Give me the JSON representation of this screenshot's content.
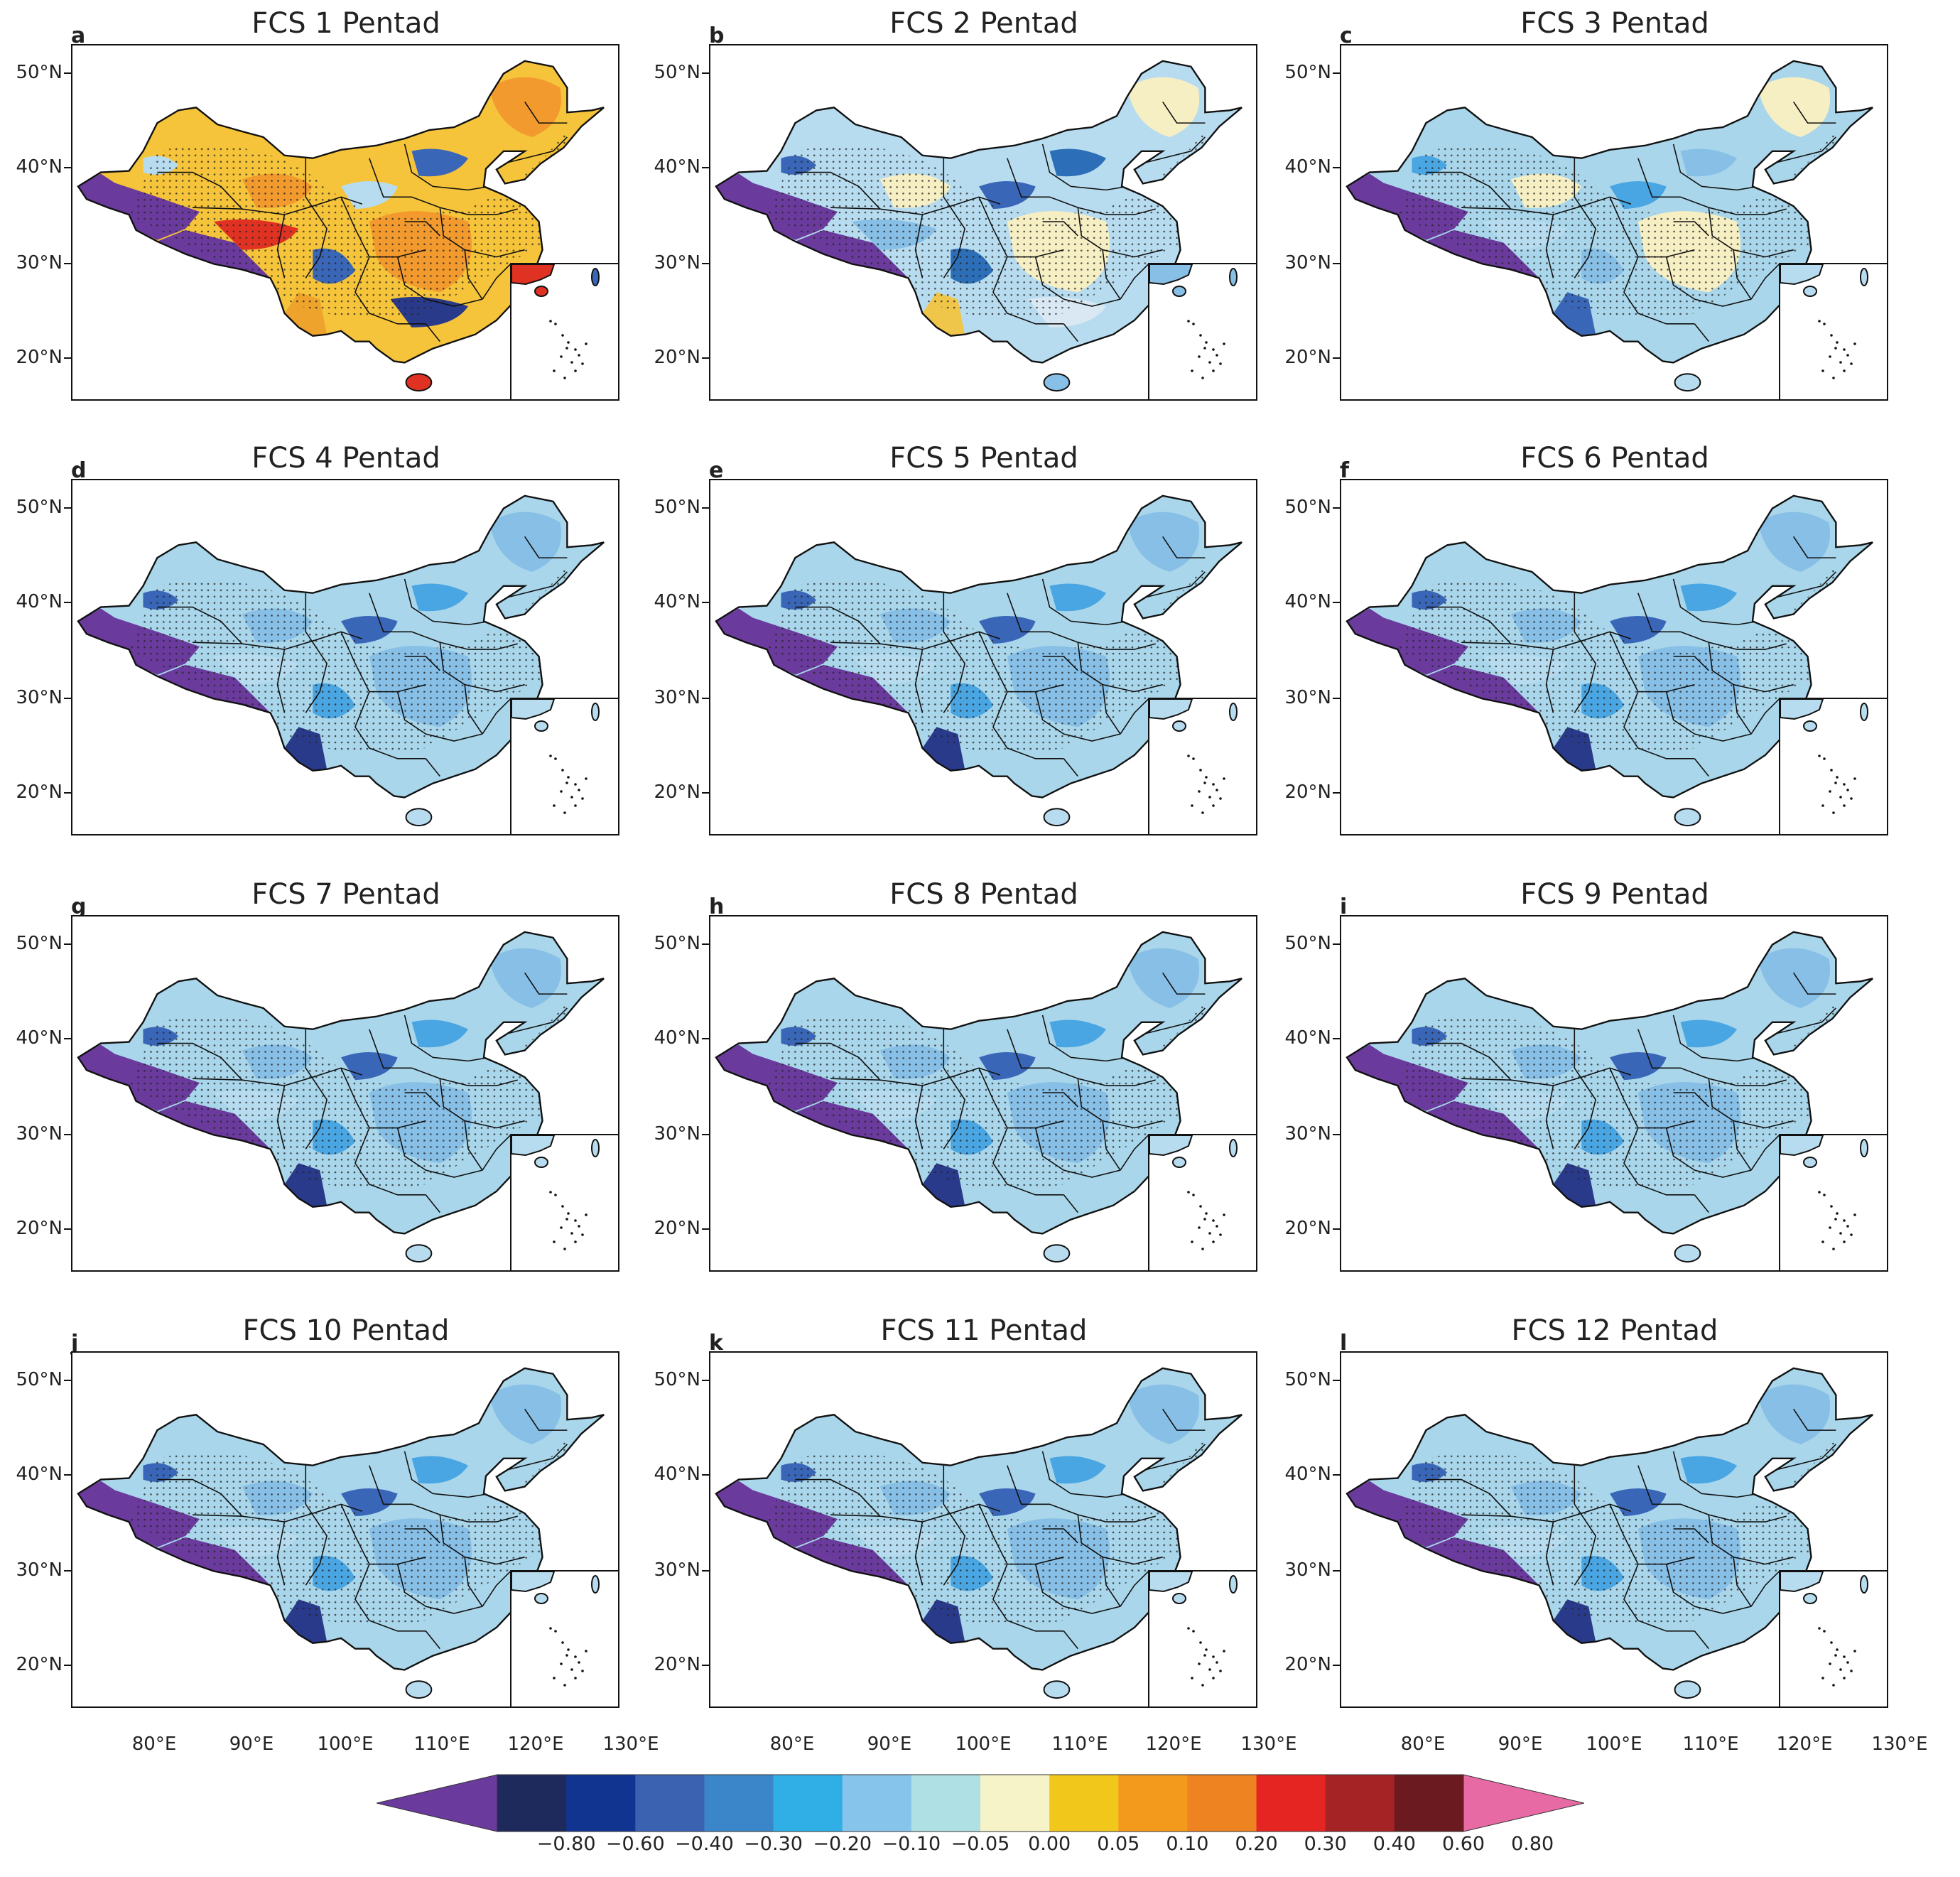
{
  "figure": {
    "panels": [
      {
        "letter": "a",
        "title": "FCS 1 Pentad",
        "palette": [
          "#6a3a9d",
          "#f6c43a",
          "#f39a2e",
          "#eea32c",
          "#b8dcef",
          "#3a66b8",
          "#e03222",
          "#2a3a8a"
        ]
      },
      {
        "letter": "b",
        "title": "FCS 2 Pentad",
        "palette": [
          "#6a3a9d",
          "#b8dcef",
          "#f7efc4",
          "#f0c64a",
          "#3a66b8",
          "#2c6fb8",
          "#87bfe6",
          "#d9e8f3"
        ]
      },
      {
        "letter": "c",
        "title": "FCS 3 Pentad",
        "palette": [
          "#6a3a9d",
          "#a9d6ea",
          "#f7efc4",
          "#3a66b8",
          "#4aa6e2",
          "#87bfe6",
          "#b8dcef",
          "#a9d6ea"
        ]
      },
      {
        "letter": "d",
        "title": "FCS 4 Pentad",
        "palette": [
          "#6a3a9d",
          "#a9d6ea",
          "#87bfe6",
          "#2a3a8a",
          "#3a66b8",
          "#4aa6e2",
          "#b8dcef",
          "#a9d6ea"
        ]
      },
      {
        "letter": "e",
        "title": "FCS 5 Pentad",
        "palette": [
          "#6a3a9d",
          "#a9d6ea",
          "#87bfe6",
          "#2a3a8a",
          "#3a66b8",
          "#4aa6e2",
          "#b8dcef",
          "#a9d6ea"
        ]
      },
      {
        "letter": "f",
        "title": "FCS 6 Pentad",
        "palette": [
          "#6a3a9d",
          "#a9d6ea",
          "#87bfe6",
          "#2a3a8a",
          "#3a66b8",
          "#4aa6e2",
          "#b8dcef",
          "#a9d6ea"
        ]
      },
      {
        "letter": "g",
        "title": "FCS 7 Pentad",
        "palette": [
          "#6a3a9d",
          "#a9d6ea",
          "#87bfe6",
          "#2a3a8a",
          "#3a66b8",
          "#4aa6e2",
          "#b8dcef",
          "#a9d6ea"
        ]
      },
      {
        "letter": "h",
        "title": "FCS 8 Pentad",
        "palette": [
          "#6a3a9d",
          "#a9d6ea",
          "#87bfe6",
          "#2a3a8a",
          "#3a66b8",
          "#4aa6e2",
          "#b8dcef",
          "#a9d6ea"
        ]
      },
      {
        "letter": "i",
        "title": "FCS 9 Pentad",
        "palette": [
          "#6a3a9d",
          "#a9d6ea",
          "#87bfe6",
          "#2a3a8a",
          "#3a66b8",
          "#4aa6e2",
          "#b8dcef",
          "#a9d6ea"
        ]
      },
      {
        "letter": "j",
        "title": "FCS 10 Pentad",
        "palette": [
          "#6a3a9d",
          "#a9d6ea",
          "#87bfe6",
          "#2a3a8a",
          "#3a66b8",
          "#4aa6e2",
          "#b8dcef",
          "#a9d6ea"
        ]
      },
      {
        "letter": "k",
        "title": "FCS 11 Pentad",
        "palette": [
          "#6a3a9d",
          "#a9d6ea",
          "#87bfe6",
          "#2a3a8a",
          "#3a66b8",
          "#4aa6e2",
          "#b8dcef",
          "#a9d6ea"
        ]
      },
      {
        "letter": "l",
        "title": "FCS 12 Pentad",
        "palette": [
          "#6a3a9d",
          "#a9d6ea",
          "#87bfe6",
          "#2a3a8a",
          "#3a66b8",
          "#4aa6e2",
          "#b8dcef",
          "#a9d6ea"
        ]
      }
    ],
    "lat_labels": [
      "50°N",
      "40°N",
      "30°N",
      "20°N"
    ],
    "lon_labels": [
      "80°E",
      "90°E",
      "100°E",
      "110°E",
      "120°E",
      "130°E"
    ]
  },
  "colorbar": {
    "ticks": [
      "−0.80",
      "−0.60",
      "−0.40",
      "−0.30",
      "−0.20",
      "−0.10",
      "−0.05",
      "0.00",
      "0.05",
      "0.10",
      "0.20",
      "0.30",
      "0.40",
      "0.60",
      "0.80"
    ],
    "colors": [
      "#6a3a9d",
      "#1f2a5c",
      "#10348f",
      "#3a62b0",
      "#3b86c8",
      "#30aee6",
      "#87c4ec",
      "#aee0e4",
      "#f7f3c9",
      "#f2c71b",
      "#f39a1c",
      "#ee8322",
      "#e42522",
      "#a52225",
      "#6b1b1f",
      "#e76aa5"
    ]
  }
}
